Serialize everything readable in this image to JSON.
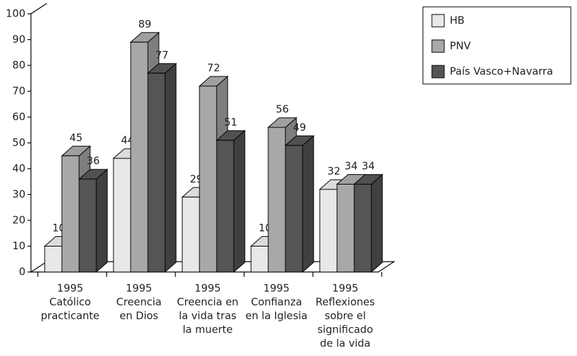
{
  "chart_data": {
    "type": "bar3d",
    "categories": [
      [
        "1995",
        "Católico",
        "practicante"
      ],
      [
        "1995",
        "Creencia",
        "en Dios"
      ],
      [
        "1995",
        "Creencia en",
        "la vida tras",
        "la muerte"
      ],
      [
        "1995",
        "Confianza",
        "en la Iglesia"
      ],
      [
        "1995",
        "Reflexiones",
        "sobre el",
        "significado",
        "de la vida"
      ]
    ],
    "series": [
      {
        "name": "HB",
        "color": "#e8e8e8",
        "values": [
          10,
          44,
          29,
          10,
          32
        ]
      },
      {
        "name": "PNV",
        "color": "#a8a8a8",
        "values": [
          45,
          89,
          72,
          56,
          34
        ]
      },
      {
        "name": "País Vasco+Navarra",
        "color": "#555555",
        "values": [
          36,
          77,
          51,
          49,
          34
        ]
      }
    ],
    "ylim": [
      0,
      100
    ],
    "yticks": [
      0,
      10,
      20,
      30,
      40,
      50,
      60,
      70,
      80,
      90,
      100
    ],
    "legend": "top-right"
  }
}
